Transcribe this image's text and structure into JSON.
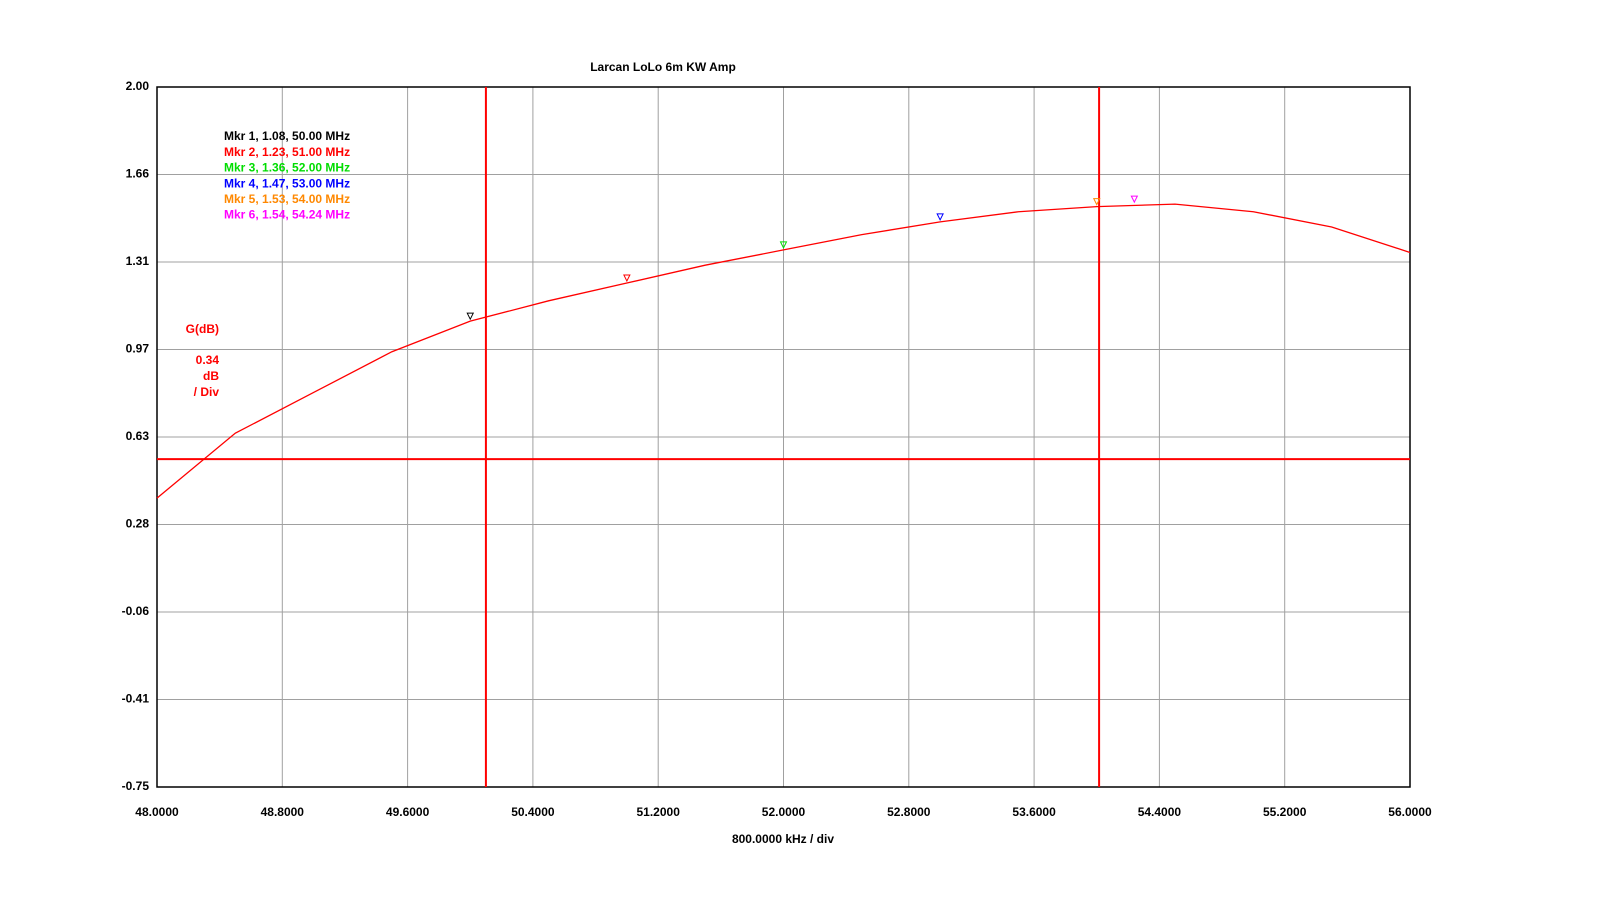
{
  "chart_data": {
    "type": "line",
    "title": "Larcan LoLo 6m KW Amp",
    "x_label": "800.0000 kHz / div",
    "y_label": "G(dB)",
    "scale_label": [
      "0.34",
      "dB",
      "/ Div"
    ],
    "xlim": [
      48,
      56
    ],
    "xticks": [
      {
        "value": 48,
        "label": "48.0000"
      },
      {
        "value": 48.8,
        "label": "48.8000"
      },
      {
        "value": 49.6,
        "label": "49.6000"
      },
      {
        "value": 50.4,
        "label": "50.4000"
      },
      {
        "value": 51.2,
        "label": "51.2000"
      },
      {
        "value": 52,
        "label": "52.0000"
      },
      {
        "value": 52.8,
        "label": "52.8000"
      },
      {
        "value": 53.6,
        "label": "53.6000"
      },
      {
        "value": 54.4,
        "label": "54.4000"
      },
      {
        "value": 55.2,
        "label": "55.2000"
      },
      {
        "value": 56,
        "label": "56.0000"
      }
    ],
    "ylim": [
      -0.75,
      2
    ],
    "yticks": [
      {
        "value": 2,
        "label": "2.00"
      },
      {
        "value": 1.65625,
        "label": "1.66"
      },
      {
        "value": 1.3125,
        "label": "1.31"
      },
      {
        "value": 0.96875,
        "label": "0.97"
      },
      {
        "value": 0.625,
        "label": "0.63"
      },
      {
        "value": 0.28125,
        "label": "0.28"
      },
      {
        "value": -0.0625,
        "label": "-0.06"
      },
      {
        "value": -0.40625,
        "label": "-0.41"
      },
      {
        "value": -0.75,
        "label": "-0.75"
      }
    ],
    "grid": true,
    "series": [
      {
        "name": "G(dB)",
        "color": "#ff0000",
        "x": [
          48,
          48.5,
          49,
          49.5,
          50,
          50.5,
          51,
          51.5,
          52,
          52.5,
          53,
          53.5,
          54,
          54.5,
          55,
          55.5,
          56
        ],
        "values": [
          0.385,
          0.64,
          0.8,
          0.96,
          1.08,
          1.16,
          1.23,
          1.3,
          1.36,
          1.42,
          1.47,
          1.51,
          1.53,
          1.54,
          1.51,
          1.45,
          1.35
        ]
      }
    ],
    "markers": [
      {
        "label": "Mkr 1, 1.08, 50.00 MHz",
        "x": 50,
        "y": 1.08,
        "color": "#000000"
      },
      {
        "label": "Mkr 2, 1.23, 51.00 MHz",
        "x": 51,
        "y": 1.23,
        "color": "#ff0000"
      },
      {
        "label": "Mkr 3, 1.36, 52.00 MHz",
        "x": 52,
        "y": 1.36,
        "color": "#00dd00"
      },
      {
        "label": "Mkr 4, 1.47, 53.00 MHz",
        "x": 53,
        "y": 1.47,
        "color": "#0000ff"
      },
      {
        "label": "Mkr 5, 1.53, 54.00 MHz",
        "x": 54,
        "y": 1.53,
        "color": "#ff8800"
      },
      {
        "label": "Mkr 6, 1.54, 54.24 MHz",
        "x": 54.24,
        "y": 1.54,
        "color": "#ff00ff"
      }
    ],
    "limit_lines": {
      "x": [
        50.1,
        54.015
      ],
      "y": 0.538,
      "color": "#ff0000"
    }
  }
}
